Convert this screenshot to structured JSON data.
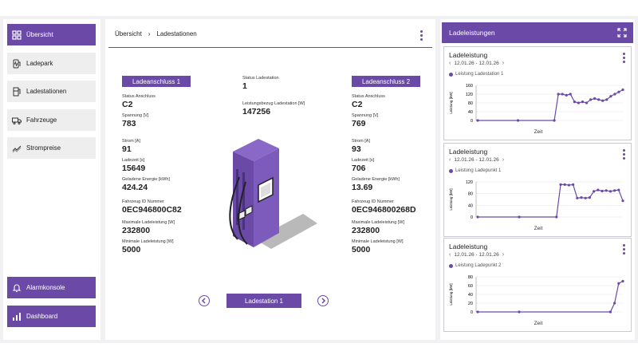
{
  "sidebar": {
    "items": [
      {
        "label": "Übersicht",
        "icon": "dashboard-grid-icon",
        "active": true
      },
      {
        "label": "Ladepark",
        "icon": "charging-park-icon"
      },
      {
        "label": "Ladestationen",
        "icon": "charging-station-icon"
      },
      {
        "label": "Fahrzeuge",
        "icon": "truck-icon"
      },
      {
        "label": "Strompreise",
        "icon": "price-trend-icon"
      }
    ],
    "bottom": [
      {
        "label": "Alarmkonsole",
        "icon": "bell-icon"
      },
      {
        "label": "Dashboard",
        "icon": "bar-chart-icon"
      }
    ]
  },
  "breadcrumb": {
    "root": "Übersicht",
    "separator": "›",
    "current": "Ladestationen"
  },
  "station": {
    "status_label": "Status Ladestation",
    "status_value": "1",
    "power_label": "Leistungsbezug Ladestation [W]",
    "power_value": "147256",
    "name": "Ladestation 1"
  },
  "connectors": [
    {
      "title": "Ladeanschluss 1",
      "fields": [
        {
          "label": "Status Anschluss",
          "value": "C2"
        },
        {
          "label": "Spannung [V]",
          "value": "783"
        },
        {
          "label": "Strom [A]",
          "value": "91"
        },
        {
          "label": "Ladezeit [s]",
          "value": "15649"
        },
        {
          "label": "Geladene Energie [kWh]",
          "value": "424.24"
        },
        {
          "label": "Fahrzeug ID Nummer",
          "value": "0EC946800C82"
        },
        {
          "label": "Maximale Ladeleistung [W]",
          "value": "232800"
        },
        {
          "label": "Minimale Ladeleistung [W]",
          "value": "5000"
        }
      ]
    },
    {
      "title": "Ladeanschluss 2",
      "fields": [
        {
          "label": "Status Anschluss",
          "value": "C2"
        },
        {
          "label": "Spannung [V]",
          "value": "769"
        },
        {
          "label": "Strom [A]",
          "value": "93"
        },
        {
          "label": "Ladezeit [s]",
          "value": "706"
        },
        {
          "label": "Geladene Energie [kWh]",
          "value": "13.69"
        },
        {
          "label": "Fahrzeug ID Nummer",
          "value": "0EC946800268D"
        },
        {
          "label": "Maximale Ladeleistung [W]",
          "value": "232800"
        },
        {
          "label": "Minimale Ladeleistung [W]",
          "value": "5000"
        }
      ]
    }
  ],
  "right_panel": {
    "title": "Ladeleistungen",
    "cards": [
      {
        "title": "Ladeleistung",
        "date_range": "12.01.26 - 12.01.26",
        "legend": "Leistung Ladestation 1",
        "ylabel": "Leistung [kW]",
        "xlabel": "Zeit",
        "yticks": [
          "160",
          "120",
          "80",
          "40",
          "0"
        ]
      },
      {
        "title": "Ladeleistung",
        "date_range": "12.01.26 - 12.01.26",
        "legend": "Leistung Ladepunkt 1",
        "ylabel": "Leistung [kW]",
        "xlabel": "Zeit",
        "yticks": [
          "120",
          "80",
          "40",
          "0"
        ]
      },
      {
        "title": "Ladeleistung",
        "date_range": "12.01.26 - 12.01.26",
        "legend": "Leistung Ladepunkt 2",
        "ylabel": "Leistung [kW]",
        "xlabel": "Zeit",
        "yticks": [
          "80",
          "60",
          "40",
          "20",
          "0"
        ]
      }
    ]
  },
  "chart_data": [
    {
      "type": "line",
      "series": [
        {
          "name": "Leistung Ladestation 1",
          "values": [
            0,
            0,
            0,
            0,
            0,
            0,
            0,
            0,
            0,
            0,
            0,
            0,
            0,
            0,
            0,
            0,
            0,
            0,
            0,
            0,
            120,
            120,
            115,
            120,
            85,
            80,
            85,
            80,
            95,
            100,
            95,
            90,
            95,
            110,
            120,
            130,
            140
          ]
        }
      ],
      "ylim": [
        0,
        160
      ],
      "ylabel": "Leistung [kW]",
      "xlabel": "Zeit"
    },
    {
      "type": "line",
      "series": [
        {
          "name": "Leistung Ladepunkt 1",
          "values": [
            0,
            0,
            0,
            0,
            0,
            0,
            0,
            0,
            0,
            0,
            0,
            0,
            0,
            0,
            0,
            0,
            0,
            0,
            0,
            0,
            120,
            120,
            118,
            120,
            70,
            72,
            70,
            72,
            95,
            100,
            96,
            98,
            95,
            98,
            100,
            60
          ]
        }
      ],
      "ylim": [
        0,
        130
      ],
      "ylabel": "Leistung [kW]",
      "xlabel": "Zeit"
    },
    {
      "type": "line",
      "series": [
        {
          "name": "Leistung Ladepunkt 2",
          "values": [
            0,
            0,
            0,
            0,
            0,
            0,
            0,
            0,
            0,
            0,
            0,
            0,
            0,
            0,
            0,
            0,
            0,
            0,
            0,
            0,
            0,
            0,
            0,
            0,
            0,
            0,
            0,
            0,
            0,
            0,
            0,
            0,
            0,
            20,
            65,
            70
          ]
        }
      ],
      "ylim": [
        0,
        80
      ],
      "ylabel": "Leistung [kW]",
      "xlabel": "Zeit"
    }
  ],
  "colors": {
    "accent": "#6a4aa6",
    "panel_bg": "#f1f1f3"
  }
}
